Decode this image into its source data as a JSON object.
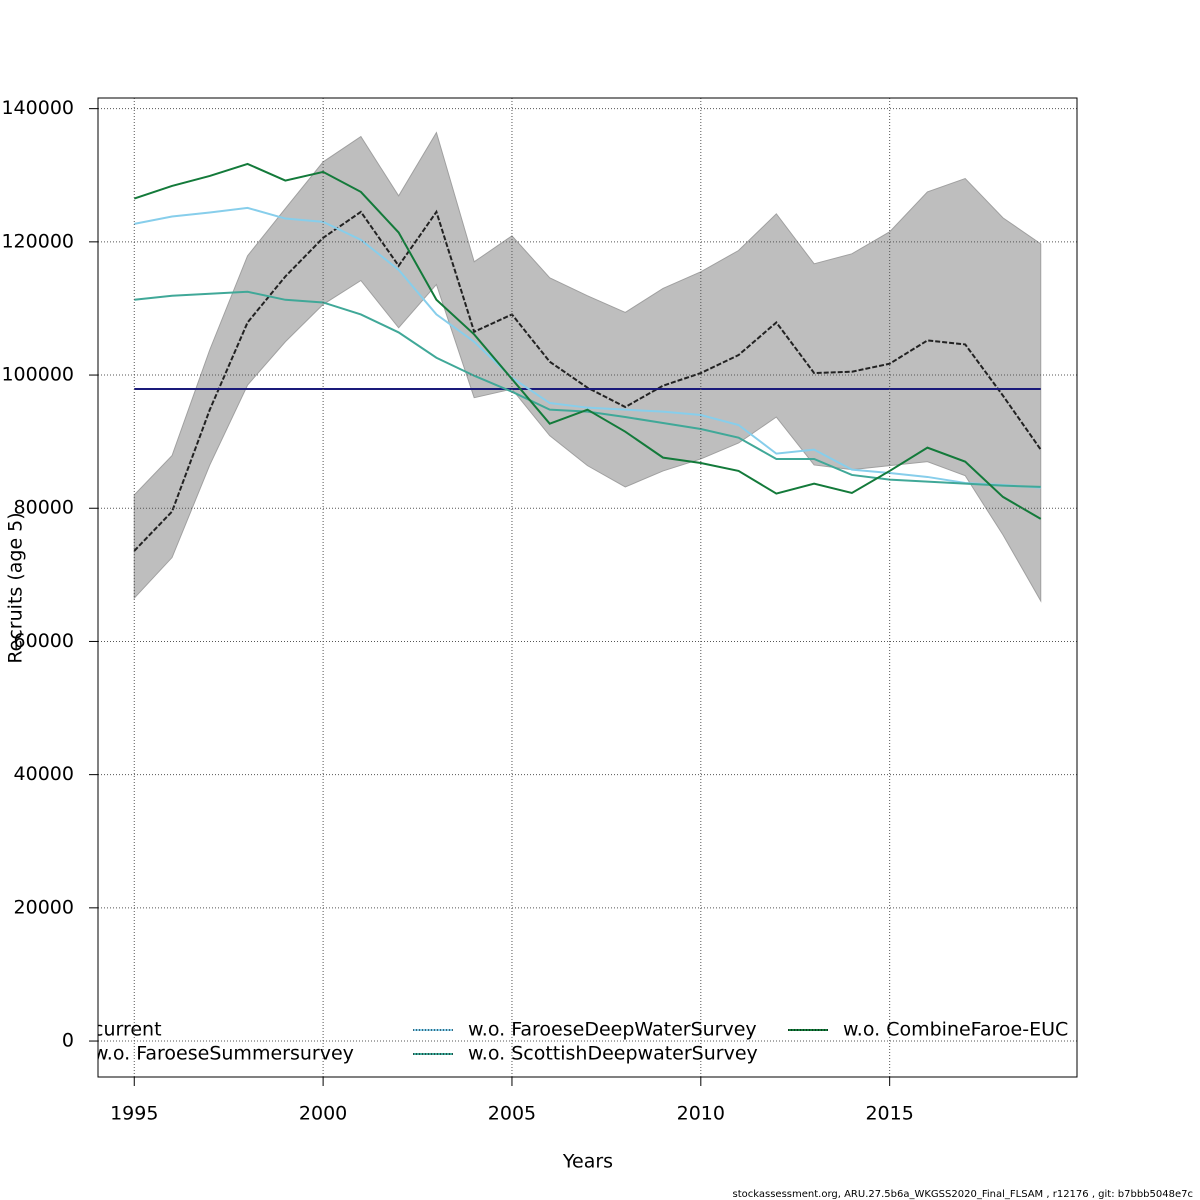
{
  "chart_data": {
    "type": "line",
    "x_label": "Years",
    "y_label": "Recruits (age 5)",
    "footer": "stockassessment.org, ARU.27.5b6a_WKGSS2020_Final_FLSAM , r12176 , git: b7bbb5048e7c",
    "x": [
      1995,
      1996,
      1997,
      1998,
      1999,
      2000,
      2001,
      2002,
      2003,
      2004,
      2005,
      2006,
      2007,
      2008,
      2009,
      2010,
      2011,
      2012,
      2013,
      2014,
      2015,
      2016,
      2017,
      2018,
      2019
    ],
    "xlim": [
      1994.04,
      2019.96
    ],
    "xticks": [
      1995,
      2000,
      2005,
      2010,
      2015
    ],
    "ylim": [
      -5400,
      141600
    ],
    "yticks": [
      0,
      20000,
      40000,
      60000,
      80000,
      100000,
      120000,
      140000
    ],
    "grid": true,
    "band_color": "#bebebe",
    "series": [
      {
        "name": "current",
        "color": "#222222",
        "dashed": true,
        "values": [
          73600,
          79500,
          94800,
          107900,
          114800,
          120600,
          124500,
          116400,
          124500,
          106500,
          109100,
          102000,
          98100,
          95200,
          98400,
          100300,
          103000,
          107900,
          100300,
          100500,
          101700,
          105200,
          104600,
          96900,
          88800
        ],
        "lower": [
          66500,
          72600,
          86500,
          98500,
          105000,
          110600,
          114200,
          107100,
          113600,
          96600,
          97900,
          90900,
          86400,
          83200,
          85600,
          87400,
          89800,
          93700,
          86500,
          85800,
          86400,
          87000,
          84900,
          76000,
          66100
        ],
        "upper": [
          82000,
          87900,
          103800,
          117900,
          125000,
          132000,
          135800,
          126900,
          136400,
          117000,
          120900,
          114600,
          111900,
          109400,
          113000,
          115500,
          118700,
          124200,
          116700,
          118200,
          121500,
          127500,
          129500,
          123600,
          119700
        ]
      },
      {
        "name": "w.o. FaroeseSummersurvey",
        "color": "#1a1a7a",
        "values": [
          97900,
          97900,
          97900,
          97900,
          97900,
          97900,
          97900,
          97900,
          97900,
          97900,
          97900,
          97900,
          97900,
          97900,
          97900,
          97900,
          97900,
          97900,
          97900,
          97900,
          97900,
          97900,
          97900,
          97900,
          97900
        ]
      },
      {
        "name": "w.o. FaroeseDeepWaterSurvey",
        "color": "#87ceeb",
        "values": [
          122700,
          123800,
          124400,
          125100,
          123500,
          123000,
          120300,
          115800,
          109100,
          105000,
          99600,
          95800,
          95100,
          94800,
          94500,
          94000,
          92500,
          88200,
          88800,
          85800,
          85300,
          84700,
          83800,
          83500,
          83100
        ]
      },
      {
        "name": "w.o. ScottishDeepwaterSurvey",
        "color": "#40a898",
        "values": [
          111300,
          111900,
          112200,
          112500,
          111300,
          110900,
          109100,
          106400,
          102600,
          99900,
          97500,
          94800,
          94500,
          93700,
          92800,
          91900,
          90600,
          87400,
          87400,
          85000,
          84300,
          84000,
          83700,
          83400,
          83200
        ]
      },
      {
        "name": "w.o. CombineFaroe-EUC",
        "color": "#137a3a",
        "values": [
          126500,
          128400,
          129900,
          131700,
          129200,
          130500,
          127500,
          121400,
          111300,
          106100,
          99400,
          92700,
          94800,
          91500,
          87600,
          86800,
          85600,
          82200,
          83700,
          82300,
          85600,
          89100,
          87000,
          81700,
          78400
        ]
      }
    ]
  }
}
